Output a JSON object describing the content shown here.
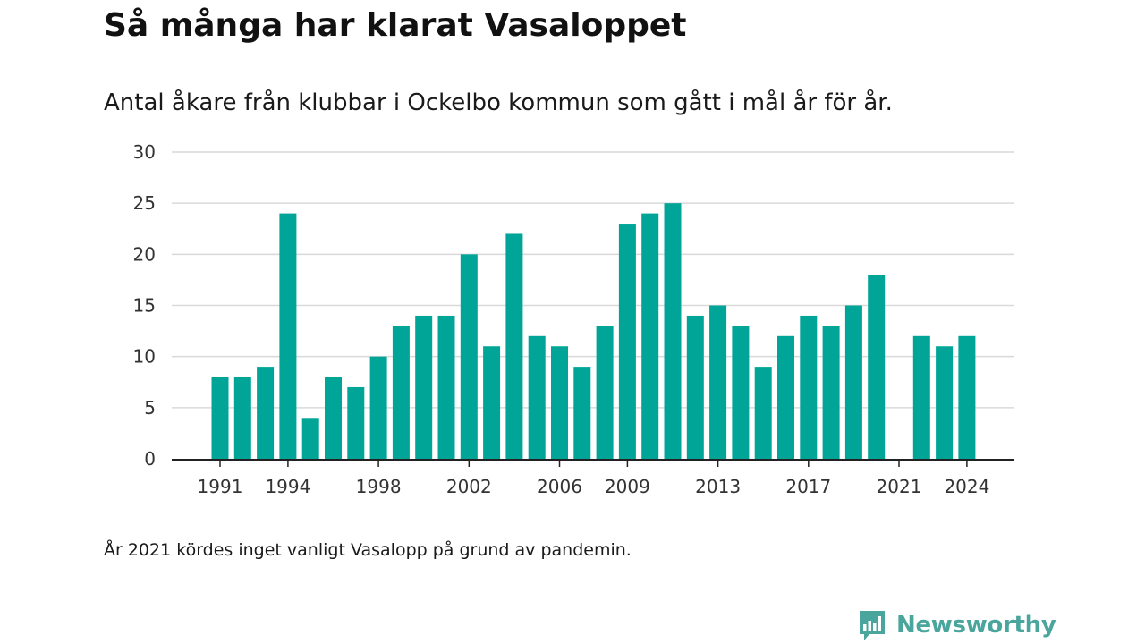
{
  "header": {
    "title": "Så många har klarat Vasaloppet",
    "subtitle": "Antal åkare från klubbar i Ockelbo kommun som gått i mål år för år."
  },
  "footer": {
    "note": "År 2021 kördes inget vanligt Vasalopp på grund av pandemin.",
    "brand_name": "Newsworthy",
    "brand_icon": "newsworthy-logo-icon"
  },
  "colors": {
    "bar": "#00a598",
    "brand": "#4aa59d",
    "grid": "#d9d9d9",
    "axis": "#222222"
  },
  "chart_data": {
    "type": "bar",
    "title": "Så många har klarat Vasaloppet",
    "subtitle": "Antal åkare från klubbar i Ockelbo kommun som gått i mål år för år.",
    "xlabel": "",
    "ylabel": "",
    "categories": [
      1991,
      1992,
      1993,
      1994,
      1995,
      1996,
      1997,
      1998,
      1999,
      2000,
      2001,
      2002,
      2003,
      2004,
      2005,
      2006,
      2007,
      2008,
      2009,
      2010,
      2011,
      2012,
      2013,
      2014,
      2015,
      2016,
      2017,
      2018,
      2019,
      2020,
      2021,
      2022,
      2023,
      2024
    ],
    "values": [
      8,
      8,
      9,
      24,
      4,
      8,
      7,
      10,
      13,
      14,
      14,
      20,
      11,
      22,
      12,
      11,
      9,
      13,
      23,
      24,
      25,
      14,
      15,
      13,
      9,
      12,
      14,
      13,
      15,
      18,
      null,
      12,
      11,
      12
    ],
    "ylim": [
      0,
      30
    ],
    "yticks": [
      0,
      5,
      10,
      15,
      20,
      25,
      30
    ],
    "xticks": [
      1991,
      1994,
      1998,
      2002,
      2006,
      2009,
      2013,
      2017,
      2021,
      2024
    ],
    "grid": true,
    "legend": "none"
  }
}
